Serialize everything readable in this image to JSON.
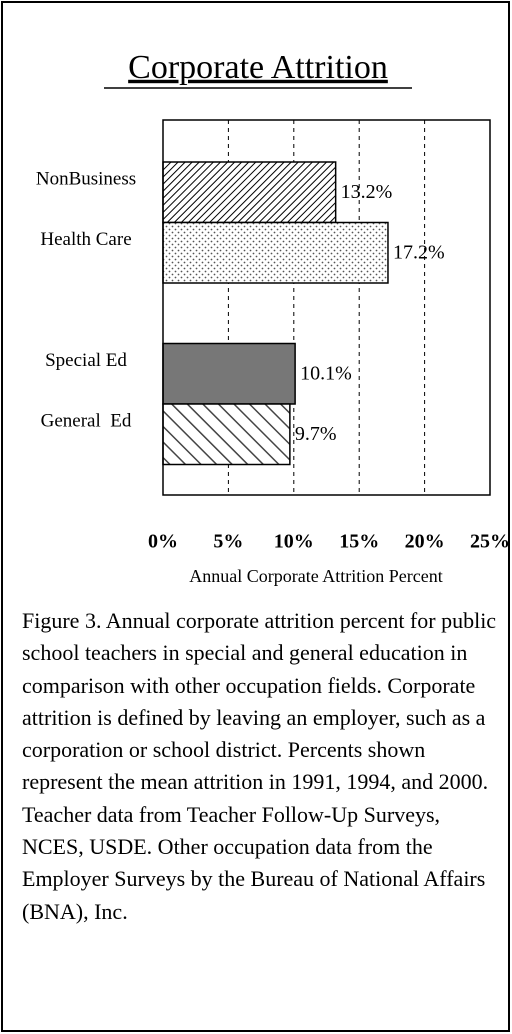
{
  "chart_data": {
    "type": "hbar",
    "title": "Corporate Attrition",
    "categories": [
      "NonBusiness",
      "Health Care",
      null,
      "Special Ed",
      "General  Ed"
    ],
    "values": [
      13.2,
      17.2,
      null,
      10.1,
      9.7
    ],
    "value_labels": [
      "13.2%",
      "17.2%",
      null,
      "10.1%",
      "9.7%"
    ],
    "patterns": [
      "dense-hatch",
      "dots",
      "solid",
      "solid",
      "wide-hatch"
    ],
    "colors": [
      "#000000",
      "#000000",
      null,
      "#777777",
      "#000000"
    ],
    "xlim": [
      0,
      25
    ],
    "xticks": [
      {
        "value": 0,
        "label": "0%"
      },
      {
        "value": 5,
        "label": "5%"
      },
      {
        "value": 10,
        "label": "10%"
      },
      {
        "value": 15,
        "label": "15%"
      },
      {
        "value": 20,
        "label": "20%"
      },
      {
        "value": 25,
        "label": "25%"
      }
    ],
    "xlabel": "Annual Corporate Attrition Percent",
    "grid": true,
    "caption": "Figure 3. Annual corporate attrition percent for public school teachers in special and general education in comparison with other occupation fields. Corporate attrition is defined by leaving an employer, such as a corporation or school district. Percents shown represent the mean attrition in 1991, 1994, and 2000. Teacher data from Teacher Follow-Up Surveys, NCES, USDE. Other occupation data from the Employer Surveys by the Bureau of National Affairs (BNA), Inc."
  }
}
